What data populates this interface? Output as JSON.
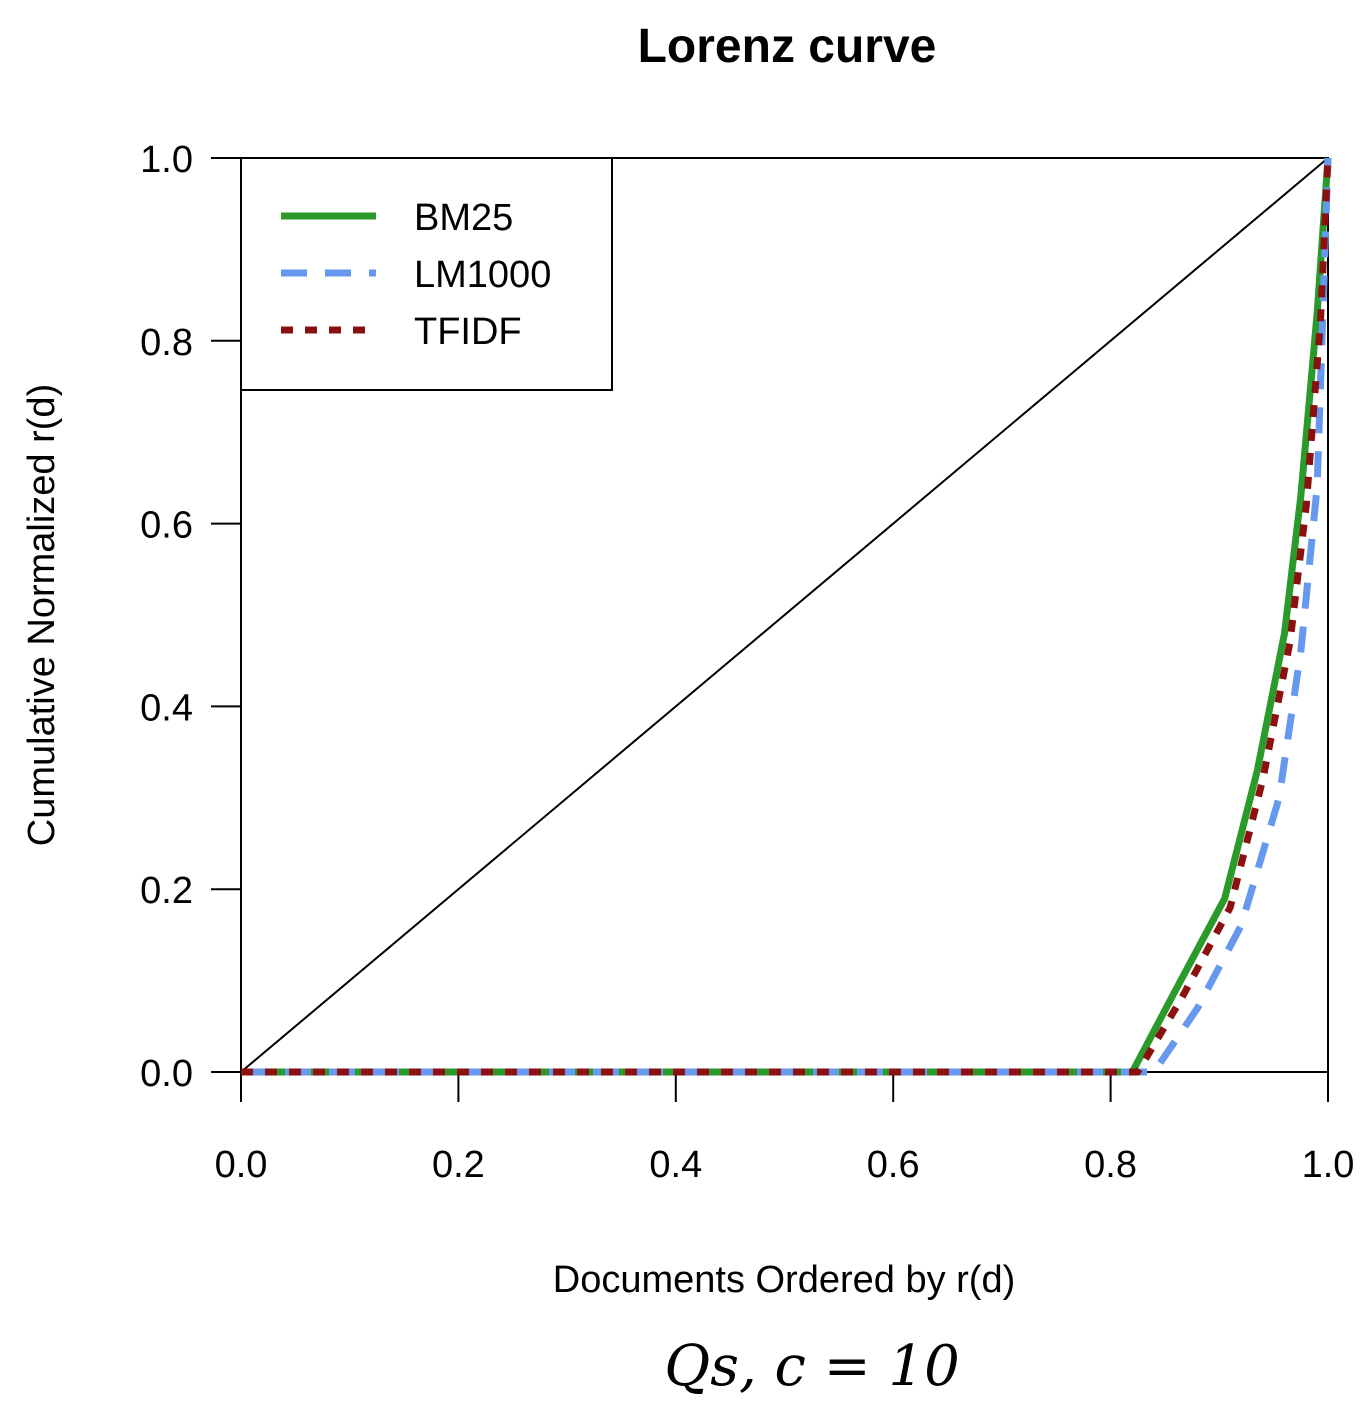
{
  "chart_data": {
    "type": "line",
    "title": "Lorenz curve",
    "xlabel": "Documents Ordered by r(d)",
    "ylabel": "Cumulative Normalized r(d)",
    "caption": "Qs, c = 10",
    "xlim": [
      0,
      1
    ],
    "ylim": [
      0,
      1
    ],
    "x_ticks": [
      "0.0",
      "0.2",
      "0.4",
      "0.6",
      "0.8",
      "1.0"
    ],
    "y_ticks": [
      "0.0",
      "0.2",
      "0.4",
      "0.6",
      "0.8",
      "1.0"
    ],
    "grid": false,
    "legend_position": "top-left",
    "reference_line": {
      "x": [
        0,
        1
      ],
      "y": [
        0,
        1
      ],
      "color": "#000000"
    },
    "series": [
      {
        "name": "BM25",
        "style": "solid",
        "color": "#2a9a2a",
        "x": [
          0.0,
          0.82,
          0.86,
          0.905,
          0.935,
          0.96,
          0.975,
          0.99,
          1.0
        ],
        "y": [
          0.0,
          0.0,
          0.09,
          0.19,
          0.33,
          0.48,
          0.63,
          0.83,
          1.0
        ]
      },
      {
        "name": "LM1000",
        "style": "dashed",
        "color": "#6699ee",
        "x": [
          0.0,
          0.84,
          0.88,
          0.92,
          0.955,
          0.975,
          0.99,
          1.0
        ],
        "y": [
          0.0,
          0.0,
          0.07,
          0.16,
          0.3,
          0.46,
          0.64,
          1.0
        ]
      },
      {
        "name": "TFIDF",
        "style": "dotted",
        "color": "#8b1010",
        "x": [
          0.0,
          0.825,
          0.865,
          0.91,
          0.94,
          0.965,
          0.98,
          0.993,
          1.0
        ],
        "y": [
          0.0,
          0.0,
          0.08,
          0.18,
          0.32,
          0.47,
          0.62,
          0.82,
          1.0
        ]
      }
    ]
  }
}
